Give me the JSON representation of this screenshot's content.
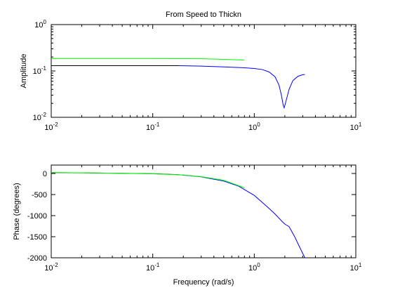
{
  "chart_data": [
    {
      "type": "line",
      "title": "From Speed to Thickn",
      "ylabel": "Amplitude",
      "xlabel": "",
      "x_scale": "log",
      "y_scale": "log",
      "xlim": [
        0.01,
        10
      ],
      "ylim": [
        0.01,
        1
      ],
      "x_ticks": [
        {
          "base": "10",
          "exp": "-2"
        },
        {
          "base": "10",
          "exp": "-1"
        },
        {
          "base": "10",
          "exp": "0"
        },
        {
          "base": "10",
          "exp": "1"
        }
      ],
      "y_ticks": [
        {
          "base": "10",
          "exp": "0"
        },
        {
          "base": "10",
          "exp": "-1"
        },
        {
          "base": "10",
          "exp": "-2"
        }
      ],
      "x_tick_values": [
        0.01,
        0.1,
        1,
        10
      ],
      "y_tick_values": [
        1,
        0.1,
        0.01
      ],
      "grid": false,
      "series": [
        {
          "color": "#000000",
          "points": [
            [
              0.01,
              0.13
            ],
            [
              0.02,
              0.13
            ],
            [
              0.05,
              0.13
            ],
            [
              0.1,
              0.13
            ],
            [
              0.15,
              0.13
            ],
            [
              0.18,
              0.13
            ]
          ]
        },
        {
          "color": "#0000ff",
          "points": [
            [
              0.18,
              0.13
            ],
            [
              0.3,
              0.127
            ],
            [
              0.5,
              0.122
            ],
            [
              0.8,
              0.117
            ],
            [
              1.0,
              0.113
            ],
            [
              1.2,
              0.107
            ],
            [
              1.4,
              0.095
            ],
            [
              1.6,
              0.075
            ],
            [
              1.75,
              0.05
            ],
            [
              1.85,
              0.03
            ],
            [
              1.93,
              0.018
            ],
            [
              1.97,
              0.016
            ],
            [
              2.05,
              0.022
            ],
            [
              2.2,
              0.04
            ],
            [
              2.4,
              0.062
            ],
            [
              2.7,
              0.077
            ],
            [
              3.0,
              0.083
            ],
            [
              3.15,
              0.084
            ]
          ]
        },
        {
          "color": "#00ff00",
          "points": [
            [
              0.01,
              0.185
            ],
            [
              0.05,
              0.185
            ],
            [
              0.1,
              0.185
            ],
            [
              0.2,
              0.184
            ],
            [
              0.3,
              0.183
            ],
            [
              0.5,
              0.178
            ],
            [
              0.8,
              0.172
            ]
          ]
        }
      ]
    },
    {
      "type": "line",
      "title": "",
      "ylabel": "Phase (degrees)",
      "xlabel": "Frequency (rad/s)",
      "x_scale": "log",
      "y_scale": "linear",
      "xlim": [
        0.01,
        10
      ],
      "ylim": [
        -2000,
        200
      ],
      "x_ticks": [
        {
          "base": "10",
          "exp": "-2"
        },
        {
          "base": "10",
          "exp": "-1"
        },
        {
          "base": "10",
          "exp": "0"
        },
        {
          "base": "10",
          "exp": "1"
        }
      ],
      "y_ticks": [
        "0",
        "-500",
        "-1000",
        "-1500",
        "-2000"
      ],
      "x_tick_values": [
        0.01,
        0.1,
        1,
        10
      ],
      "y_tick_values": [
        0,
        -500,
        -1000,
        -1500,
        -2000
      ],
      "grid": false,
      "series": [
        {
          "color": "#000000",
          "points": [
            [
              0.01,
              20
            ],
            [
              0.02,
              15
            ],
            [
              0.05,
              5
            ],
            [
              0.1,
              -5
            ],
            [
              0.15,
              -20
            ],
            [
              0.18,
              -30
            ]
          ]
        },
        {
          "color": "#0000ff",
          "points": [
            [
              0.18,
              -30
            ],
            [
              0.3,
              -80
            ],
            [
              0.5,
              -180
            ],
            [
              0.7,
              -300
            ],
            [
              1.0,
              -520
            ],
            [
              1.3,
              -760
            ],
            [
              1.6,
              -960
            ],
            [
              1.9,
              -1150
            ],
            [
              2.0,
              -1200
            ],
            [
              2.2,
              -1260
            ],
            [
              2.5,
              -1500
            ],
            [
              2.8,
              -1750
            ],
            [
              3.15,
              -2000
            ]
          ]
        },
        {
          "color": "#00ff00",
          "points": [
            [
              0.01,
              20
            ],
            [
              0.02,
              17
            ],
            [
              0.05,
              5
            ],
            [
              0.1,
              -8
            ],
            [
              0.2,
              -35
            ],
            [
              0.3,
              -75
            ],
            [
              0.5,
              -160
            ],
            [
              0.8,
              -340
            ]
          ]
        }
      ]
    }
  ]
}
